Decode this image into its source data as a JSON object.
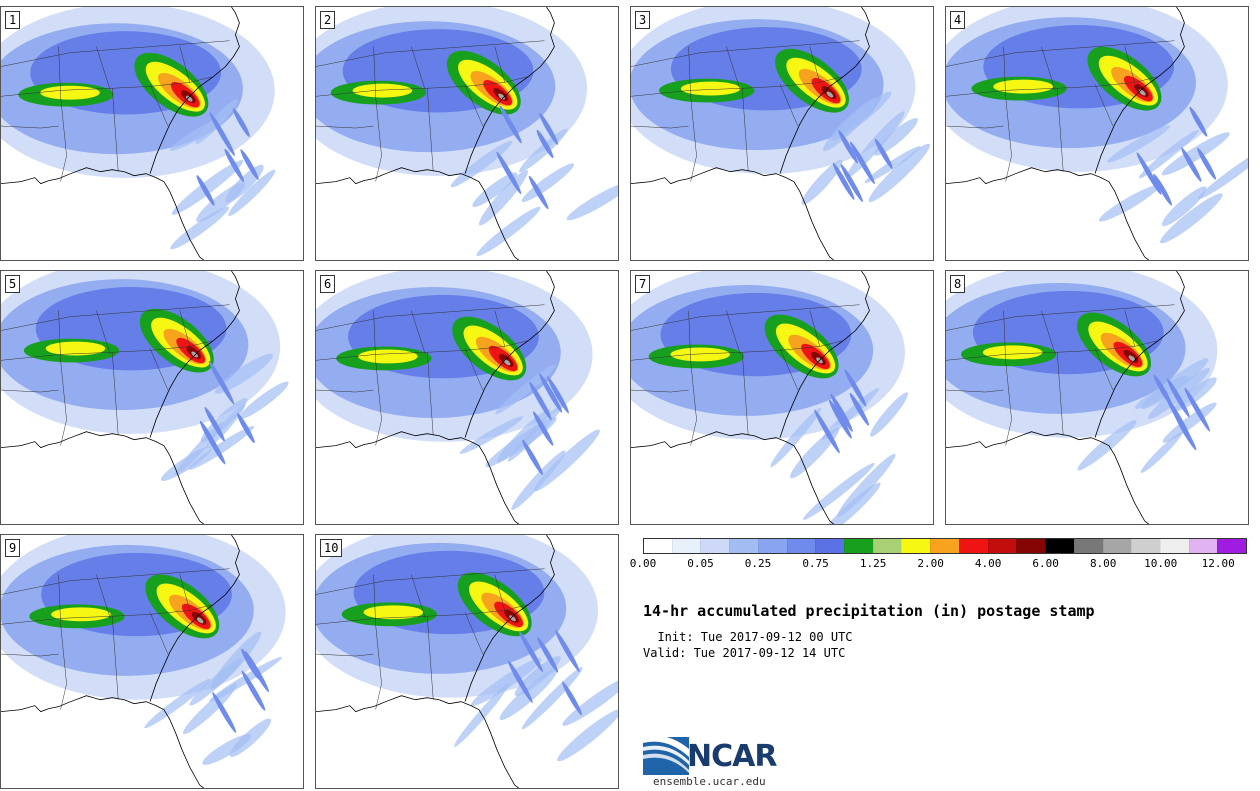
{
  "title": "14-hr accumulated precipitation (in) postage stamp",
  "init": "  Init: Tue 2017-09-12 00 UTC",
  "valid": "Valid: Tue 2017-09-12 14 UTC",
  "logo": {
    "name": "NCAR",
    "url": "ensemble.ucar.edu"
  },
  "members": [
    {
      "label": "1"
    },
    {
      "label": "2"
    },
    {
      "label": "3"
    },
    {
      "label": "4"
    },
    {
      "label": "5"
    },
    {
      "label": "6"
    },
    {
      "label": "7"
    },
    {
      "label": "8"
    },
    {
      "label": "9"
    },
    {
      "label": "10"
    }
  ],
  "colorbar": {
    "colors": [
      "#ffffff",
      "#e8f0fc",
      "#cdd9f7",
      "#a3bdf3",
      "#8aa5f0",
      "#6f8cec",
      "#5a72e6",
      "#16a01e",
      "#a8d176",
      "#f7f714",
      "#f7a31e",
      "#ef1414",
      "#c30c0c",
      "#850404",
      "#000000",
      "#787878",
      "#a6a6a6",
      "#cfcfcf",
      "#efefef",
      "#e1b3f3",
      "#a01ce0"
    ],
    "ticks": [
      {
        "value": "0.00",
        "at": 0
      },
      {
        "value": "0.05",
        "at": 2
      },
      {
        "value": "0.25",
        "at": 4
      },
      {
        "value": "0.75",
        "at": 6
      },
      {
        "value": "1.25",
        "at": 8
      },
      {
        "value": "2.00",
        "at": 10
      },
      {
        "value": "4.00",
        "at": 12
      },
      {
        "value": "6.00",
        "at": 14
      },
      {
        "value": "8.00",
        "at": 16
      },
      {
        "value": "10.00",
        "at": 18
      },
      {
        "value": "12.00",
        "at": 20
      }
    ]
  }
}
